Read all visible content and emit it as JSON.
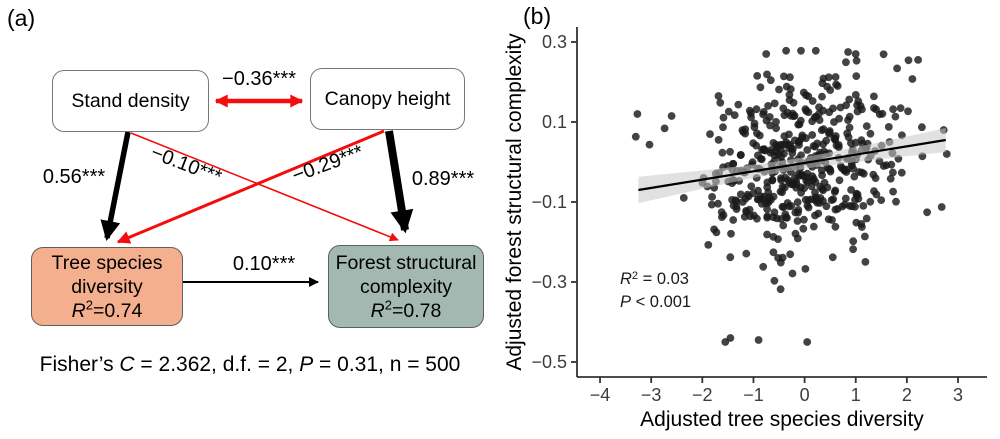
{
  "panel_a": {
    "label": "(a)",
    "boxes": {
      "stand_density": {
        "label": "Stand density",
        "fill": "#ffffff"
      },
      "canopy_height": {
        "label": "Canopy height",
        "fill": "#ffffff"
      },
      "tree_diversity": {
        "line1": "Tree species",
        "line2": "diversity",
        "r2_symbol": "R",
        "r2_sup": "2",
        "r2_rest": "=0.74",
        "fill": "#f4af8e"
      },
      "forest_complexity": {
        "line1": "Forest structural",
        "line2": "complexity",
        "r2_symbol": "R",
        "r2_sup": "2",
        "r2_rest": "=0.78",
        "fill": "#a3b8b0"
      }
    },
    "path_coefficients": {
      "density_canopy": "−0.36***",
      "density_diversity": "0.56***",
      "density_complexity": "−0.10***",
      "canopy_diversity": "−0.29***",
      "canopy_complexity": "0.89***",
      "diversity_complexity": "0.10***"
    },
    "fisher": {
      "p1": "Fisher’s ",
      "p2": "C",
      "p3": " = 2.362, d.f. = 2, ",
      "p4": "P",
      "p5": " = 0.31, n = 500"
    },
    "colors": {
      "negative_arrow": "#f40d0d",
      "positive_arrow": "#000000"
    }
  },
  "panel_b_label": "(b)",
  "chart_data": {
    "type": "scatter",
    "title": "",
    "xlabel": "Adjusted tree species diversity",
    "ylabel": "Adjusted forest structural complexity",
    "xlim": [
      -4.3,
      3.4
    ],
    "ylim": [
      -0.56,
      0.34
    ],
    "grid": false,
    "legend": "none",
    "x_tick_values": [
      -4,
      -3,
      -2,
      -1,
      0,
      1,
      2,
      3
    ],
    "x_tick_labels": [
      "−4",
      "−3",
      "−2",
      "−1",
      "0",
      "1",
      "2",
      "3"
    ],
    "y_tick_values": [
      0.3,
      0.1,
      -0.1,
      -0.3,
      -0.5
    ],
    "y_tick_labels": [
      "0.3",
      "0.1",
      "−0.1",
      "−0.3",
      "−0.5"
    ],
    "regression_line": {
      "x1": -3.25,
      "y1": -0.07,
      "x2": 2.76,
      "y2": 0.055,
      "color": "#000000"
    },
    "ci_band": {
      "halfwidth_left": 0.033,
      "halfwidth_mid": 0.014,
      "halfwidth_right": 0.03,
      "color": "#c8c8c8",
      "opacity": 0.55
    },
    "annotation": {
      "r2_symbol": "R",
      "r2_sup": "2",
      "r2_rest": " = 0.03",
      "p_symbol": "P",
      "p_rest": " < 0.001",
      "x": -3.61,
      "y1": -0.305,
      "y2": -0.362
    },
    "n_points": 500,
    "point_style": {
      "radius": 3.9,
      "color": "#1a1a1a",
      "opacity": 0.82
    },
    "cloud_estimate": {
      "seed": 7,
      "x_mean": -0.12,
      "x_sd": 1.0,
      "y_sd": 0.11,
      "slope": 0.021,
      "x_clamp": [
        -3.3,
        2.78
      ],
      "y_clamp": [
        -0.455,
        0.278
      ]
    },
    "notable_points": [
      [
        -3.27,
        0.12
      ],
      [
        -2.6,
        0.115
      ],
      [
        -1.55,
        -0.45
      ],
      [
        -1.45,
        -0.44
      ],
      [
        -0.9,
        -0.445
      ],
      [
        0.05,
        -0.45
      ],
      [
        2.72,
        0.08
      ],
      [
        2.78,
        0.02
      ],
      [
        -0.75,
        0.27
      ],
      [
        0.85,
        0.275
      ],
      [
        1.0,
        0.27
      ]
    ]
  }
}
